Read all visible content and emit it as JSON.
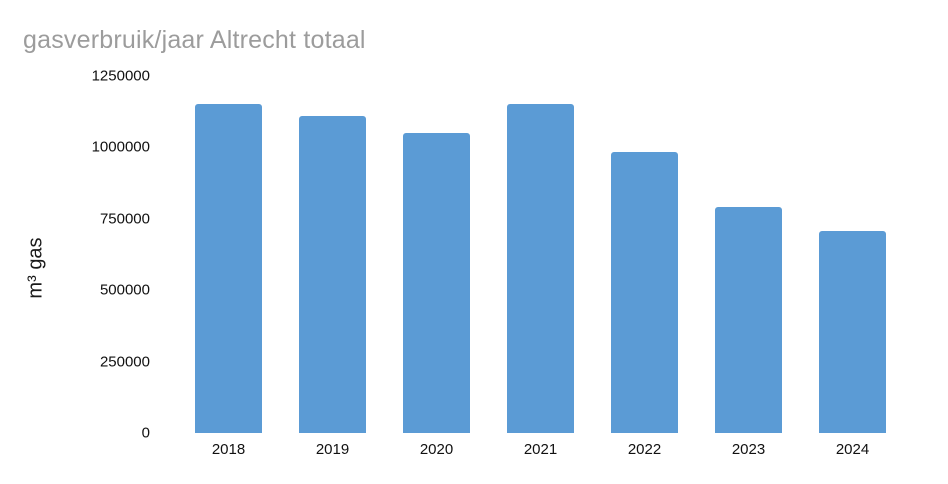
{
  "title": "gasverbruik/jaar Altrecht totaal",
  "colors": {
    "background": "#ffffff",
    "bar": "#5B9BD5",
    "title_text": "#9c9c9c",
    "axis_text": "#111111"
  },
  "chart_data": {
    "type": "bar",
    "title": "gasverbruik/jaar Altrecht totaal",
    "subtitle": "",
    "categories": [
      "2018",
      "2019",
      "2020",
      "2021",
      "2022",
      "2023",
      "2024"
    ],
    "values": [
      1150000,
      1110000,
      1048000,
      1150000,
      981000,
      790000,
      705000
    ],
    "series_name": "gasverbruik",
    "xlabel": "",
    "ylabel": "m³ gas",
    "ylim": [
      0,
      1250000
    ],
    "yticks": [
      0,
      250000,
      500000,
      750000,
      1000000,
      1250000
    ],
    "ytick_labels": [
      "0",
      "250000",
      "500000",
      "750000",
      "1000000",
      "1250000"
    ],
    "grid": false,
    "legend": false,
    "bar_color": "#5B9BD5"
  }
}
